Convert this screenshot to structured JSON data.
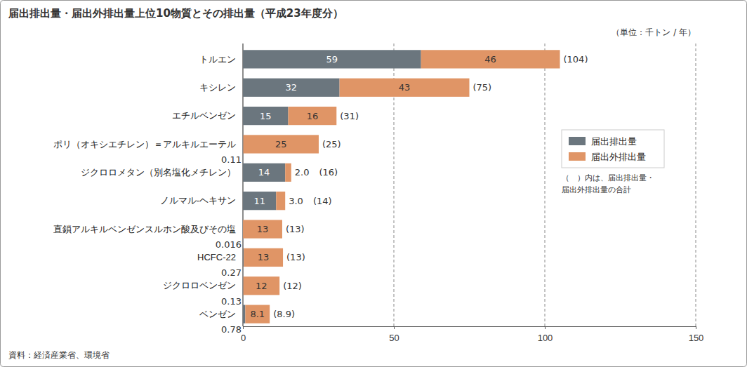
{
  "chart_data": {
    "type": "bar",
    "title": "届出排出量・届出外排出量上位10物質とその排出量（平成23年度分）",
    "x_label": "（単位：千トン / 年）",
    "orientation": "horizontal",
    "stacked": true,
    "data_labels": true,
    "grid": true,
    "legend": "right",
    "categories": [
      "トルエン",
      "キシレン",
      "エチルベンゼン",
      "ポリ（オキシエチレン）＝アルキルエーテル",
      "ジクロロメタン（別名塩化メチレン）",
      "ノルマル-ヘキサン",
      "直鎖アルキルベンゼンスルホン酸及びその塩",
      "HCFC-22",
      "ジクロロベンゼン",
      "ベンゼン"
    ],
    "series": [
      {
        "name": "届出排出量",
        "color": "#6b767e",
        "values": [
          59,
          32,
          15,
          0.11,
          14,
          11,
          0.016,
          0.27,
          0.13,
          0.78
        ]
      },
      {
        "name": "届出外排出量",
        "color": "#e09566",
        "values": [
          46,
          43,
          16,
          25,
          2.0,
          3.0,
          13,
          13,
          12,
          8.1
        ],
        "value_labels": [
          "46",
          "43",
          "16",
          "25",
          "2.0",
          "3.0",
          "13",
          "13",
          "12",
          "8.1"
        ]
      }
    ],
    "totals": [
      104,
      75,
      31,
      25,
      16,
      14,
      13,
      13,
      12,
      8.9
    ],
    "total_labels": [
      "(104)",
      "(75)",
      "(31)",
      "(25)",
      "(16)",
      "(14)",
      "(13)",
      "(13)",
      "(12)",
      "(8.9)"
    ],
    "xlim": [
      0,
      150
    ],
    "xticks": [
      0,
      50,
      100,
      150
    ],
    "annotations": [
      "（　）内は、届出排出量・届出外排出量の合計",
      "資料：経済産業省、環境省"
    ]
  }
}
